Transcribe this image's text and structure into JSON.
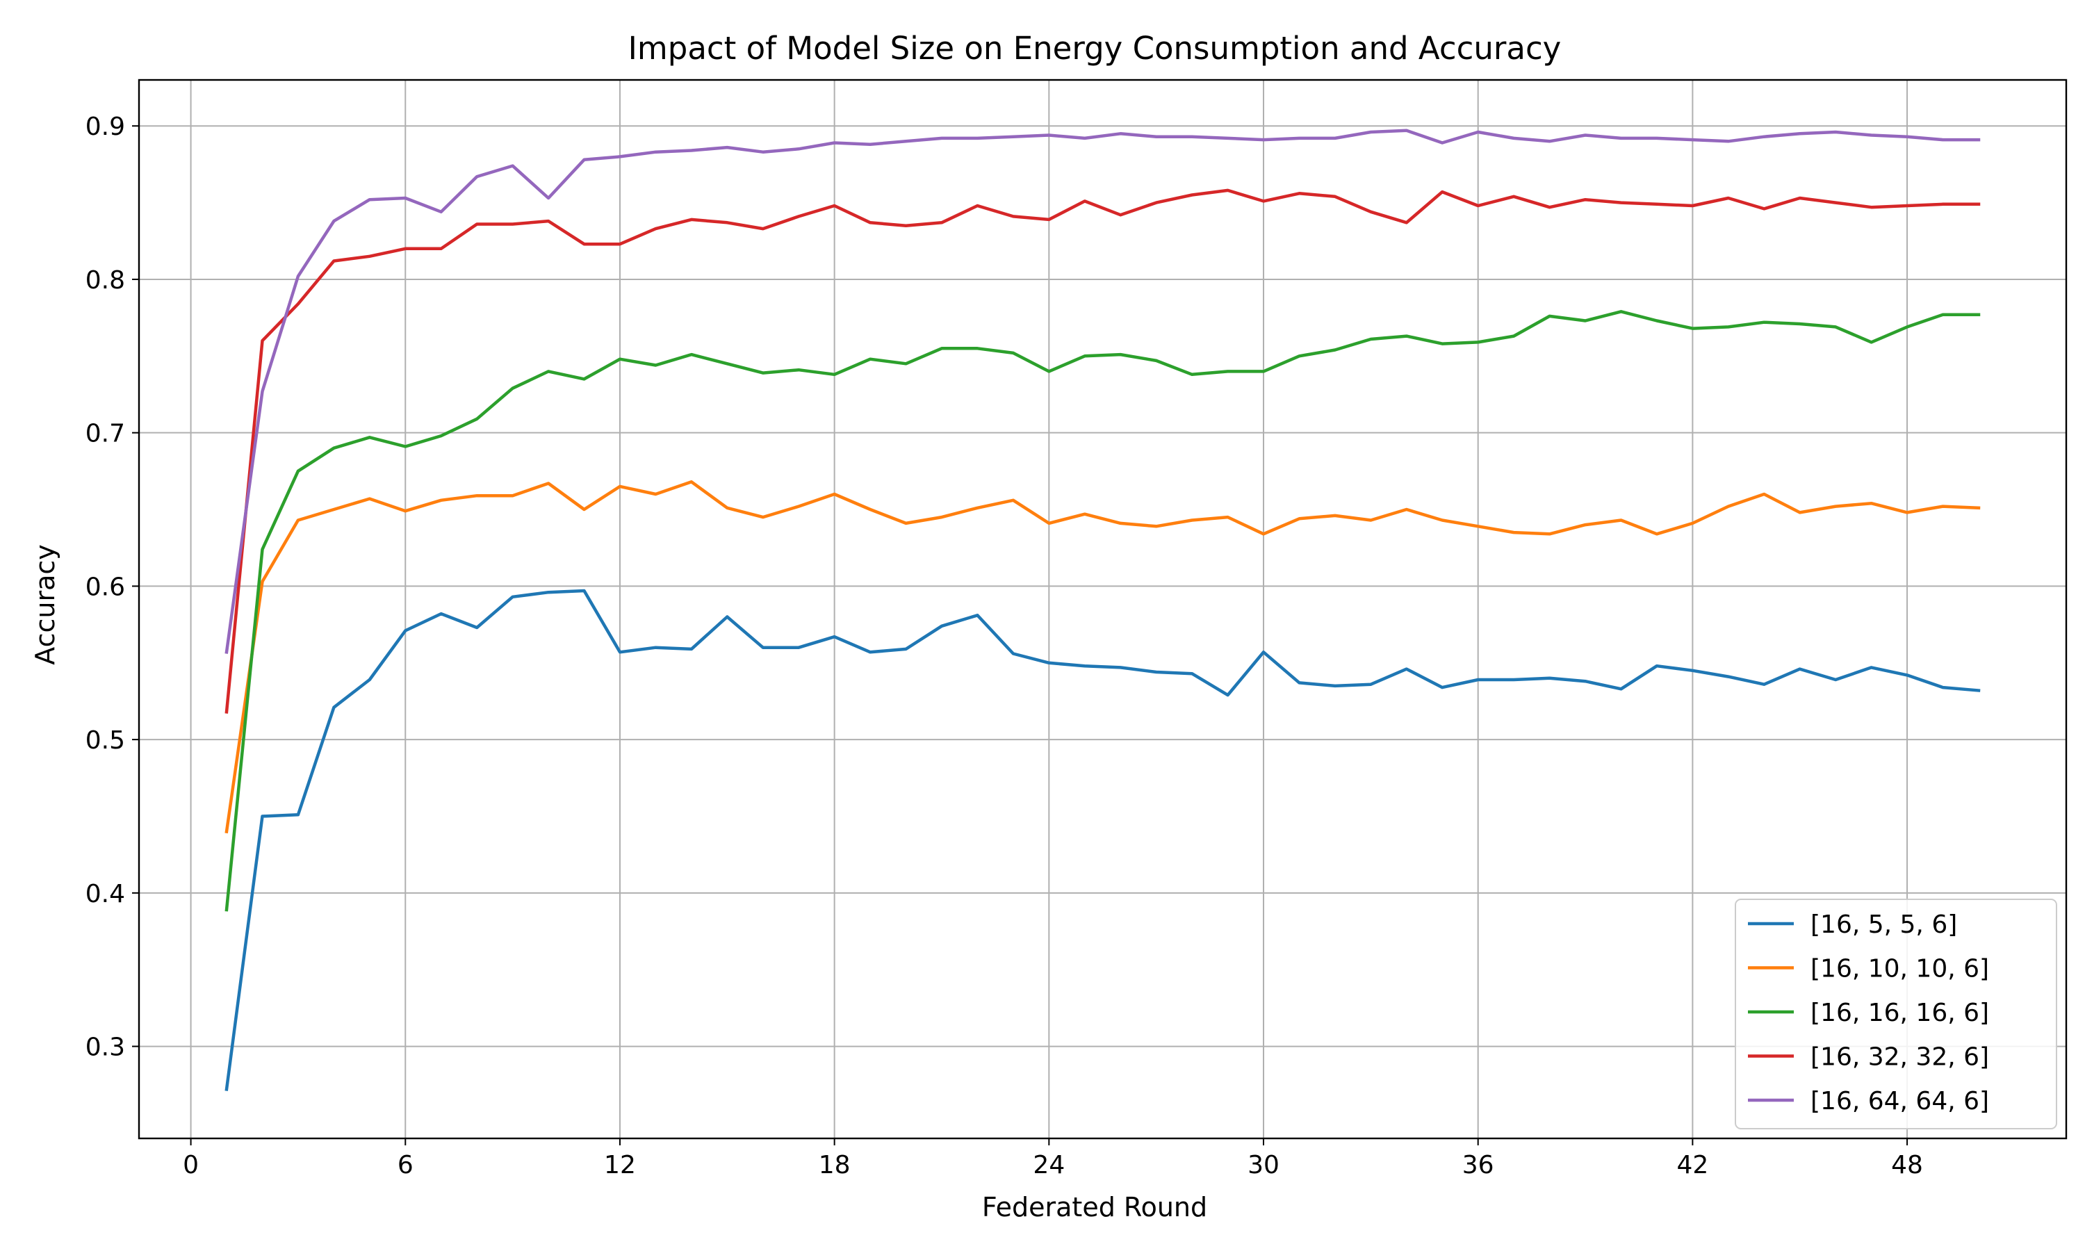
{
  "chart_data": {
    "type": "line",
    "title": "Impact of Model Size on Energy Consumption and Accuracy",
    "xlabel": "Federated Round",
    "ylabel": "Accuracy",
    "xlim": [
      -1.45,
      52.45
    ],
    "ylim": [
      0.24,
      0.93
    ],
    "xticks": [
      0,
      6,
      12,
      18,
      24,
      30,
      36,
      42,
      48
    ],
    "yticks": [
      0.3,
      0.4,
      0.5,
      0.6,
      0.7,
      0.8,
      0.9
    ],
    "ytick_labels": [
      "0.3",
      "0.4",
      "0.5",
      "0.6",
      "0.7",
      "0.8",
      "0.9"
    ],
    "grid": true,
    "legend_position": "lower-right",
    "x": [
      1,
      2,
      3,
      4,
      5,
      6,
      7,
      8,
      9,
      10,
      11,
      12,
      13,
      14,
      15,
      16,
      17,
      18,
      19,
      20,
      21,
      22,
      23,
      24,
      25,
      26,
      27,
      28,
      29,
      30,
      31,
      32,
      33,
      34,
      35,
      36,
      37,
      38,
      39,
      40,
      41,
      42,
      43,
      44,
      45,
      46,
      47,
      48,
      49,
      50
    ],
    "series": [
      {
        "name": "[16, 5, 5, 6]",
        "color": "#1f77b4",
        "values": [
          0.272,
          0.45,
          0.451,
          0.521,
          0.539,
          0.571,
          0.582,
          0.573,
          0.593,
          0.596,
          0.597,
          0.557,
          0.56,
          0.559,
          0.58,
          0.56,
          0.56,
          0.567,
          0.557,
          0.559,
          0.574,
          0.581,
          0.556,
          0.55,
          0.548,
          0.547,
          0.544,
          0.543,
          0.529,
          0.557,
          0.537,
          0.535,
          0.536,
          0.546,
          0.534,
          0.539,
          0.539,
          0.54,
          0.538,
          0.533,
          0.548,
          0.545,
          0.541,
          0.536,
          0.546,
          0.539,
          0.547,
          0.542,
          0.534,
          0.532
        ]
      },
      {
        "name": "[16, 10, 10, 6]",
        "color": "#ff7f0e",
        "values": [
          0.44,
          0.603,
          0.643,
          0.65,
          0.657,
          0.649,
          0.656,
          0.659,
          0.659,
          0.667,
          0.65,
          0.665,
          0.66,
          0.668,
          0.651,
          0.645,
          0.652,
          0.66,
          0.65,
          0.641,
          0.645,
          0.651,
          0.656,
          0.641,
          0.647,
          0.641,
          0.639,
          0.643,
          0.645,
          0.634,
          0.644,
          0.646,
          0.643,
          0.65,
          0.643,
          0.639,
          0.635,
          0.634,
          0.64,
          0.643,
          0.634,
          0.641,
          0.652,
          0.66,
          0.648,
          0.652,
          0.654,
          0.648,
          0.652,
          0.651
        ]
      },
      {
        "name": "[16, 16, 16, 6]",
        "color": "#2ca02c",
        "values": [
          0.389,
          0.624,
          0.675,
          0.69,
          0.697,
          0.691,
          0.698,
          0.709,
          0.729,
          0.74,
          0.735,
          0.748,
          0.744,
          0.751,
          0.745,
          0.739,
          0.741,
          0.738,
          0.748,
          0.745,
          0.755,
          0.755,
          0.752,
          0.74,
          0.75,
          0.751,
          0.747,
          0.738,
          0.74,
          0.74,
          0.75,
          0.754,
          0.761,
          0.763,
          0.758,
          0.759,
          0.763,
          0.776,
          0.773,
          0.779,
          0.773,
          0.768,
          0.769,
          0.772,
          0.771,
          0.769,
          0.759,
          0.769,
          0.777,
          0.777
        ]
      },
      {
        "name": "[16, 32, 32, 6]",
        "color": "#d62728",
        "values": [
          0.518,
          0.76,
          0.784,
          0.812,
          0.815,
          0.82,
          0.82,
          0.836,
          0.836,
          0.838,
          0.823,
          0.823,
          0.833,
          0.839,
          0.837,
          0.833,
          0.841,
          0.848,
          0.837,
          0.835,
          0.837,
          0.848,
          0.841,
          0.839,
          0.851,
          0.842,
          0.85,
          0.855,
          0.858,
          0.851,
          0.856,
          0.854,
          0.844,
          0.837,
          0.857,
          0.848,
          0.854,
          0.847,
          0.852,
          0.85,
          0.849,
          0.848,
          0.853,
          0.846,
          0.853,
          0.85,
          0.847,
          0.848,
          0.849,
          0.849
        ]
      },
      {
        "name": "[16, 64, 64, 6]",
        "color": "#9467bd",
        "values": [
          0.557,
          0.727,
          0.802,
          0.838,
          0.852,
          0.853,
          0.844,
          0.867,
          0.874,
          0.853,
          0.878,
          0.88,
          0.883,
          0.884,
          0.886,
          0.883,
          0.885,
          0.889,
          0.888,
          0.89,
          0.892,
          0.892,
          0.893,
          0.894,
          0.892,
          0.895,
          0.893,
          0.893,
          0.892,
          0.891,
          0.892,
          0.892,
          0.896,
          0.897,
          0.889,
          0.896,
          0.892,
          0.89,
          0.894,
          0.892,
          0.892,
          0.891,
          0.89,
          0.893,
          0.895,
          0.896,
          0.894,
          0.893,
          0.891,
          0.891
        ]
      }
    ]
  }
}
